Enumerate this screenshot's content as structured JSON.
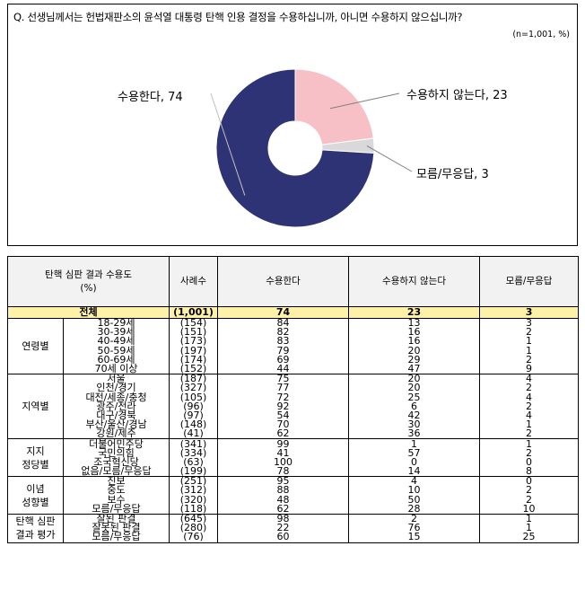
{
  "question": "Q. 선생님께서는 헌법재판소의 윤석열 대통령 탄핵 인용 결정을 수용하십니까, 아니면 수용하지 않으십니까?",
  "note": "(n=1,001, %)",
  "colors": {
    "accept": "#2e3375",
    "reject": "#f7c0c6",
    "unknown": "#d9d9d9",
    "total_row": "#fff2a8",
    "header": "#f2f2f2"
  },
  "chart_data": {
    "type": "pie",
    "style": "donut",
    "slices": [
      {
        "label": "수용한다",
        "value": 74
      },
      {
        "label": "수용하지 않는다",
        "value": 23
      },
      {
        "label": "모름/무응답",
        "value": 3
      }
    ],
    "slice_labels": [
      "수용한다, 74",
      "수용하지 않는다, 23",
      "모름/무응답, 3"
    ]
  },
  "table": {
    "headers": [
      "탄핵 심판 결과 수용도\n(%)",
      "사례수",
      "수용한다",
      "수용하지 않는다",
      "모름/무응답"
    ],
    "total": {
      "label": "전체",
      "n": "(1,001)",
      "values": [
        "74",
        "23",
        "3"
      ]
    },
    "groups": [
      {
        "name": "연령별",
        "rows": [
          {
            "label": "18-29세",
            "n": "(154)",
            "values": [
              "84",
              "13",
              "3"
            ]
          },
          {
            "label": "30-39세",
            "n": "(151)",
            "values": [
              "82",
              "16",
              "2"
            ]
          },
          {
            "label": "40-49세",
            "n": "(173)",
            "values": [
              "83",
              "16",
              "1"
            ]
          },
          {
            "label": "50-59세",
            "n": "(197)",
            "values": [
              "79",
              "20",
              "1"
            ]
          },
          {
            "label": "60-69세",
            "n": "(174)",
            "values": [
              "69",
              "29",
              "2"
            ]
          },
          {
            "label": "70세 이상",
            "n": "(152)",
            "values": [
              "44",
              "47",
              "9"
            ]
          }
        ]
      },
      {
        "name": "지역별",
        "rows": [
          {
            "label": "서울",
            "n": "(187)",
            "values": [
              "75",
              "20",
              "4"
            ]
          },
          {
            "label": "인천/경기",
            "n": "(327)",
            "values": [
              "77",
              "20",
              "2"
            ]
          },
          {
            "label": "대전/세종/충청",
            "n": "(105)",
            "values": [
              "72",
              "25",
              "4"
            ]
          },
          {
            "label": "광주/전라",
            "n": "(96)",
            "values": [
              "92",
              "6",
              "2"
            ]
          },
          {
            "label": "대구/경북",
            "n": "(97)",
            "values": [
              "54",
              "42",
              "4"
            ]
          },
          {
            "label": "부산/울산/경남",
            "n": "(148)",
            "values": [
              "70",
              "30",
              "1"
            ]
          },
          {
            "label": "강원/제주",
            "n": "(41)",
            "values": [
              "62",
              "36",
              "2"
            ]
          }
        ]
      },
      {
        "name": "지지\n정당별",
        "rows": [
          {
            "label": "더불어민주당",
            "n": "(341)",
            "values": [
              "99",
              "1",
              "1"
            ]
          },
          {
            "label": "국민의힘",
            "n": "(334)",
            "values": [
              "41",
              "57",
              "2"
            ]
          },
          {
            "label": "조국혁신당",
            "n": "(63)",
            "values": [
              "100",
              "0",
              "0"
            ]
          },
          {
            "label": "없음/모름/무응답",
            "n": "(199)",
            "values": [
              "78",
              "14",
              "8"
            ]
          }
        ]
      },
      {
        "name": "이념\n성향별",
        "rows": [
          {
            "label": "진보",
            "n": "(251)",
            "values": [
              "95",
              "4",
              "0"
            ]
          },
          {
            "label": "중도",
            "n": "(312)",
            "values": [
              "88",
              "10",
              "2"
            ]
          },
          {
            "label": "보수",
            "n": "(320)",
            "values": [
              "48",
              "50",
              "2"
            ]
          },
          {
            "label": "모름/무응답",
            "n": "(118)",
            "values": [
              "62",
              "28",
              "10"
            ]
          }
        ]
      },
      {
        "name": "탄핵 심판\n결과 평가",
        "rows": [
          {
            "label": "잘된 판결",
            "n": "(645)",
            "values": [
              "98",
              "2",
              "1"
            ]
          },
          {
            "label": "잘못된 판결",
            "n": "(280)",
            "values": [
              "22",
              "76",
              "1"
            ]
          },
          {
            "label": "모름/무응답",
            "n": "(76)",
            "values": [
              "60",
              "15",
              "25"
            ]
          }
        ]
      }
    ]
  }
}
